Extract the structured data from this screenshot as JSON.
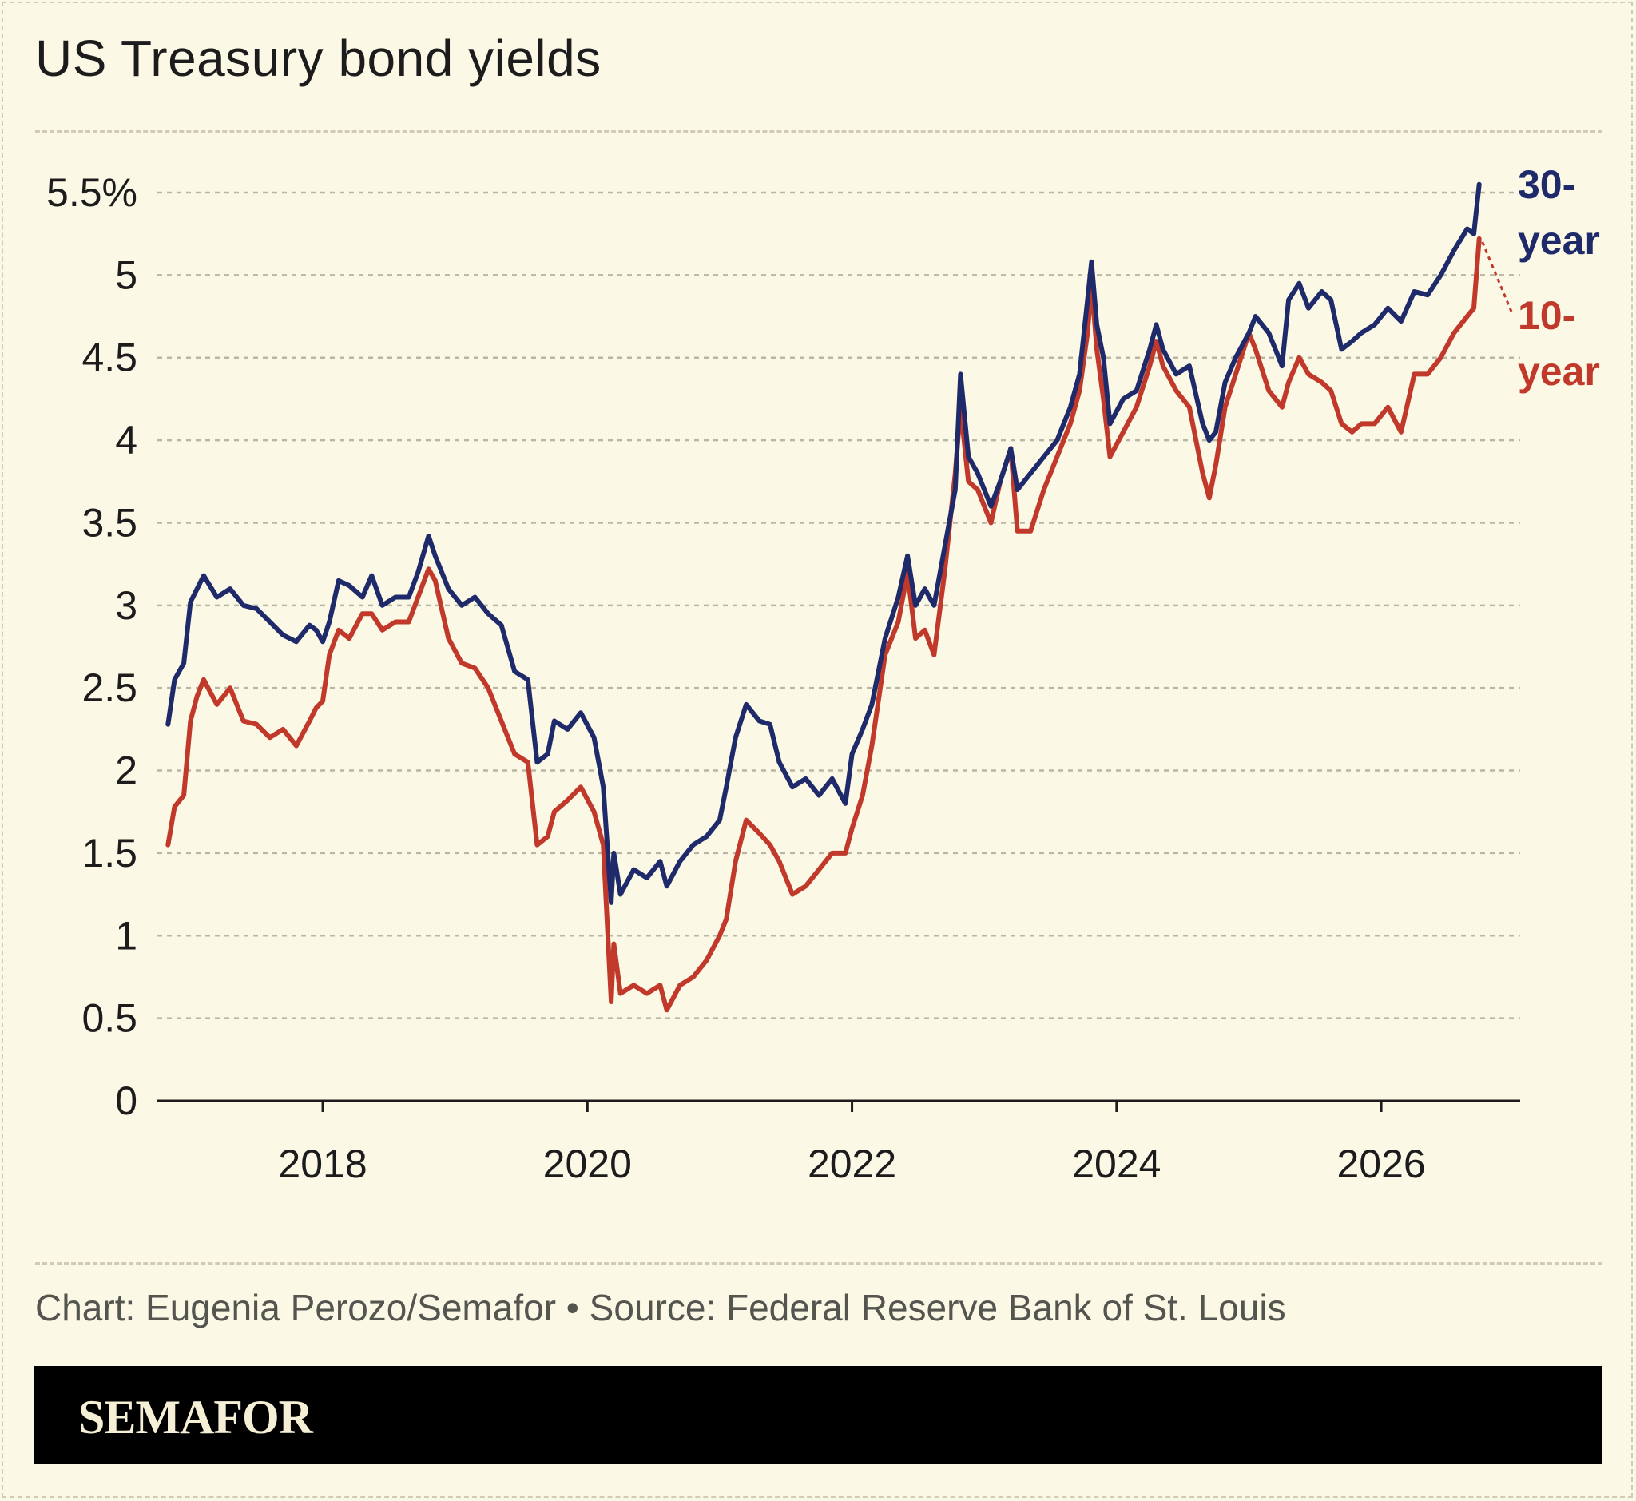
{
  "title": "US Treasury bond yields",
  "source_text": "Chart: Eugenia Perozo/Semafor • Source: Federal Reserve Bank of St. Louis",
  "brand": "SEMAFOR",
  "colors": {
    "background": "#fbf8e6",
    "series_30y": "#1f2a6b",
    "series_10y": "#c0392b"
  },
  "chart_data": {
    "type": "line",
    "title": "US Treasury bond yields",
    "xlabel": "",
    "ylabel": "",
    "xlim": [
      2016.75,
      2027.05
    ],
    "ylim": [
      0,
      5.5
    ],
    "grid": true,
    "legend": "right-end labels",
    "y_ticks": [
      {
        "value": 5.5,
        "label": "5.5%"
      },
      {
        "value": 5,
        "label": "5"
      },
      {
        "value": 4.5,
        "label": "4.5"
      },
      {
        "value": 4,
        "label": "4"
      },
      {
        "value": 3.5,
        "label": "3.5"
      },
      {
        "value": 3,
        "label": "3"
      },
      {
        "value": 2.5,
        "label": "2.5"
      },
      {
        "value": 2,
        "label": "2"
      },
      {
        "value": 1.5,
        "label": "1.5"
      },
      {
        "value": 1,
        "label": "1"
      },
      {
        "value": 0.5,
        "label": "0.5"
      },
      {
        "value": 0,
        "label": "0"
      }
    ],
    "x_ticks": [
      {
        "value": 2018,
        "label": "2018"
      },
      {
        "value": 2020,
        "label": "2020"
      },
      {
        "value": 2022,
        "label": "2022"
      },
      {
        "value": 2024,
        "label": "2024"
      },
      {
        "value": 2026,
        "label": "2026"
      }
    ],
    "series": [
      {
        "name": "30-year",
        "label_lines": [
          "30-",
          "year"
        ],
        "color": "#1f2a6b",
        "points": [
          [
            2016.83,
            2.28
          ],
          [
            2016.88,
            2.55
          ],
          [
            2016.95,
            2.65
          ],
          [
            2017.0,
            3.02
          ],
          [
            2017.05,
            3.1
          ],
          [
            2017.1,
            3.18
          ],
          [
            2017.2,
            3.05
          ],
          [
            2017.3,
            3.1
          ],
          [
            2017.4,
            3.0
          ],
          [
            2017.5,
            2.98
          ],
          [
            2017.6,
            2.9
          ],
          [
            2017.7,
            2.82
          ],
          [
            2017.8,
            2.78
          ],
          [
            2017.9,
            2.88
          ],
          [
            2017.95,
            2.85
          ],
          [
            2018.0,
            2.78
          ],
          [
            2018.05,
            2.9
          ],
          [
            2018.12,
            3.15
          ],
          [
            2018.2,
            3.12
          ],
          [
            2018.3,
            3.05
          ],
          [
            2018.37,
            3.18
          ],
          [
            2018.45,
            3.0
          ],
          [
            2018.55,
            3.05
          ],
          [
            2018.65,
            3.05
          ],
          [
            2018.72,
            3.2
          ],
          [
            2018.8,
            3.42
          ],
          [
            2018.85,
            3.3
          ],
          [
            2018.95,
            3.1
          ],
          [
            2019.05,
            3.0
          ],
          [
            2019.15,
            3.05
          ],
          [
            2019.25,
            2.95
          ],
          [
            2019.35,
            2.88
          ],
          [
            2019.45,
            2.6
          ],
          [
            2019.55,
            2.55
          ],
          [
            2019.62,
            2.05
          ],
          [
            2019.7,
            2.1
          ],
          [
            2019.75,
            2.3
          ],
          [
            2019.85,
            2.25
          ],
          [
            2019.95,
            2.35
          ],
          [
            2020.05,
            2.2
          ],
          [
            2020.12,
            1.9
          ],
          [
            2020.18,
            1.2
          ],
          [
            2020.2,
            1.5
          ],
          [
            2020.25,
            1.25
          ],
          [
            2020.35,
            1.4
          ],
          [
            2020.45,
            1.35
          ],
          [
            2020.55,
            1.45
          ],
          [
            2020.6,
            1.3
          ],
          [
            2020.7,
            1.45
          ],
          [
            2020.8,
            1.55
          ],
          [
            2020.9,
            1.6
          ],
          [
            2021.0,
            1.7
          ],
          [
            2021.05,
            1.9
          ],
          [
            2021.12,
            2.2
          ],
          [
            2021.2,
            2.4
          ],
          [
            2021.3,
            2.3
          ],
          [
            2021.38,
            2.28
          ],
          [
            2021.45,
            2.05
          ],
          [
            2021.55,
            1.9
          ],
          [
            2021.65,
            1.95
          ],
          [
            2021.75,
            1.85
          ],
          [
            2021.85,
            1.95
          ],
          [
            2021.95,
            1.8
          ],
          [
            2022.0,
            2.1
          ],
          [
            2022.08,
            2.25
          ],
          [
            2022.15,
            2.4
          ],
          [
            2022.25,
            2.8
          ],
          [
            2022.35,
            3.05
          ],
          [
            2022.42,
            3.3
          ],
          [
            2022.48,
            3.0
          ],
          [
            2022.55,
            3.1
          ],
          [
            2022.62,
            3.0
          ],
          [
            2022.7,
            3.35
          ],
          [
            2022.78,
            3.7
          ],
          [
            2022.82,
            4.4
          ],
          [
            2022.88,
            3.9
          ],
          [
            2022.95,
            3.8
          ],
          [
            2023.05,
            3.6
          ],
          [
            2023.12,
            3.75
          ],
          [
            2023.2,
            3.95
          ],
          [
            2023.25,
            3.7
          ],
          [
            2023.35,
            3.8
          ],
          [
            2023.45,
            3.9
          ],
          [
            2023.55,
            4.0
          ],
          [
            2023.65,
            4.2
          ],
          [
            2023.72,
            4.4
          ],
          [
            2023.78,
            4.85
          ],
          [
            2023.81,
            5.08
          ],
          [
            2023.85,
            4.7
          ],
          [
            2023.9,
            4.5
          ],
          [
            2023.95,
            4.1
          ],
          [
            2024.05,
            4.25
          ],
          [
            2024.15,
            4.3
          ],
          [
            2024.25,
            4.55
          ],
          [
            2024.3,
            4.7
          ],
          [
            2024.35,
            4.55
          ],
          [
            2024.45,
            4.4
          ],
          [
            2024.55,
            4.45
          ],
          [
            2024.65,
            4.1
          ],
          [
            2024.7,
            4.0
          ],
          [
            2024.75,
            4.05
          ],
          [
            2024.82,
            4.35
          ],
          [
            2024.9,
            4.5
          ],
          [
            2025.0,
            4.65
          ],
          [
            2025.05,
            4.75
          ],
          [
            2025.15,
            4.65
          ],
          [
            2025.25,
            4.45
          ],
          [
            2025.3,
            4.85
          ],
          [
            2025.38,
            4.95
          ],
          [
            2025.45,
            4.8
          ],
          [
            2025.55,
            4.9
          ],
          [
            2025.62,
            4.85
          ],
          [
            2025.7,
            4.55
          ],
          [
            2025.78,
            4.6
          ],
          [
            2025.85,
            4.65
          ],
          [
            2025.95,
            4.7
          ],
          [
            2026.05,
            4.8
          ],
          [
            2026.15,
            4.72
          ],
          [
            2026.25,
            4.9
          ],
          [
            2026.35,
            4.88
          ],
          [
            2026.45,
            5.0
          ],
          [
            2026.55,
            5.15
          ],
          [
            2026.65,
            5.28
          ],
          [
            2026.7,
            5.25
          ],
          [
            2026.74,
            5.55
          ]
        ]
      },
      {
        "name": "10-year",
        "label_lines": [
          "10-",
          "year"
        ],
        "color": "#c0392b",
        "points": [
          [
            2016.83,
            1.55
          ],
          [
            2016.88,
            1.78
          ],
          [
            2016.95,
            1.85
          ],
          [
            2017.0,
            2.3
          ],
          [
            2017.05,
            2.45
          ],
          [
            2017.1,
            2.55
          ],
          [
            2017.2,
            2.4
          ],
          [
            2017.3,
            2.5
          ],
          [
            2017.4,
            2.3
          ],
          [
            2017.5,
            2.28
          ],
          [
            2017.6,
            2.2
          ],
          [
            2017.7,
            2.25
          ],
          [
            2017.8,
            2.15
          ],
          [
            2017.9,
            2.3
          ],
          [
            2017.95,
            2.38
          ],
          [
            2018.0,
            2.42
          ],
          [
            2018.05,
            2.7
          ],
          [
            2018.12,
            2.85
          ],
          [
            2018.2,
            2.8
          ],
          [
            2018.3,
            2.95
          ],
          [
            2018.37,
            2.95
          ],
          [
            2018.45,
            2.85
          ],
          [
            2018.55,
            2.9
          ],
          [
            2018.65,
            2.9
          ],
          [
            2018.72,
            3.05
          ],
          [
            2018.8,
            3.22
          ],
          [
            2018.85,
            3.15
          ],
          [
            2018.95,
            2.8
          ],
          [
            2019.05,
            2.65
          ],
          [
            2019.15,
            2.62
          ],
          [
            2019.25,
            2.5
          ],
          [
            2019.35,
            2.3
          ],
          [
            2019.45,
            2.1
          ],
          [
            2019.55,
            2.05
          ],
          [
            2019.62,
            1.55
          ],
          [
            2019.7,
            1.6
          ],
          [
            2019.75,
            1.75
          ],
          [
            2019.85,
            1.82
          ],
          [
            2019.95,
            1.9
          ],
          [
            2020.05,
            1.75
          ],
          [
            2020.12,
            1.55
          ],
          [
            2020.18,
            0.6
          ],
          [
            2020.2,
            0.95
          ],
          [
            2020.25,
            0.65
          ],
          [
            2020.35,
            0.7
          ],
          [
            2020.45,
            0.65
          ],
          [
            2020.55,
            0.7
          ],
          [
            2020.6,
            0.55
          ],
          [
            2020.7,
            0.7
          ],
          [
            2020.8,
            0.75
          ],
          [
            2020.9,
            0.85
          ],
          [
            2021.0,
            1.0
          ],
          [
            2021.05,
            1.1
          ],
          [
            2021.12,
            1.45
          ],
          [
            2021.2,
            1.7
          ],
          [
            2021.3,
            1.62
          ],
          [
            2021.38,
            1.55
          ],
          [
            2021.45,
            1.45
          ],
          [
            2021.55,
            1.25
          ],
          [
            2021.65,
            1.3
          ],
          [
            2021.75,
            1.4
          ],
          [
            2021.85,
            1.5
          ],
          [
            2021.95,
            1.5
          ],
          [
            2022.0,
            1.65
          ],
          [
            2022.08,
            1.85
          ],
          [
            2022.15,
            2.15
          ],
          [
            2022.25,
            2.7
          ],
          [
            2022.35,
            2.9
          ],
          [
            2022.42,
            3.2
          ],
          [
            2022.48,
            2.8
          ],
          [
            2022.55,
            2.85
          ],
          [
            2022.62,
            2.7
          ],
          [
            2022.7,
            3.2
          ],
          [
            2022.78,
            3.8
          ],
          [
            2022.82,
            4.2
          ],
          [
            2022.88,
            3.75
          ],
          [
            2022.95,
            3.7
          ],
          [
            2023.05,
            3.5
          ],
          [
            2023.12,
            3.75
          ],
          [
            2023.2,
            3.95
          ],
          [
            2023.25,
            3.45
          ],
          [
            2023.35,
            3.45
          ],
          [
            2023.45,
            3.7
          ],
          [
            2023.55,
            3.9
          ],
          [
            2023.65,
            4.1
          ],
          [
            2023.72,
            4.3
          ],
          [
            2023.78,
            4.65
          ],
          [
            2023.81,
            4.95
          ],
          [
            2023.85,
            4.55
          ],
          [
            2023.9,
            4.25
          ],
          [
            2023.95,
            3.9
          ],
          [
            2024.05,
            4.05
          ],
          [
            2024.15,
            4.2
          ],
          [
            2024.25,
            4.45
          ],
          [
            2024.3,
            4.6
          ],
          [
            2024.35,
            4.45
          ],
          [
            2024.45,
            4.3
          ],
          [
            2024.55,
            4.2
          ],
          [
            2024.65,
            3.8
          ],
          [
            2024.7,
            3.65
          ],
          [
            2024.75,
            3.85
          ],
          [
            2024.82,
            4.2
          ],
          [
            2024.9,
            4.4
          ],
          [
            2025.0,
            4.65
          ],
          [
            2025.05,
            4.55
          ],
          [
            2025.15,
            4.3
          ],
          [
            2025.25,
            4.2
          ],
          [
            2025.3,
            4.35
          ],
          [
            2025.38,
            4.5
          ],
          [
            2025.45,
            4.4
          ],
          [
            2025.55,
            4.35
          ],
          [
            2025.62,
            4.3
          ],
          [
            2025.7,
            4.1
          ],
          [
            2025.78,
            4.05
          ],
          [
            2025.85,
            4.1
          ],
          [
            2025.95,
            4.1
          ],
          [
            2026.05,
            4.2
          ],
          [
            2026.15,
            4.05
          ],
          [
            2026.25,
            4.4
          ],
          [
            2026.35,
            4.4
          ],
          [
            2026.45,
            4.5
          ],
          [
            2026.55,
            4.65
          ],
          [
            2026.65,
            4.75
          ],
          [
            2026.7,
            4.8
          ],
          [
            2026.74,
            5.22
          ]
        ]
      }
    ]
  }
}
